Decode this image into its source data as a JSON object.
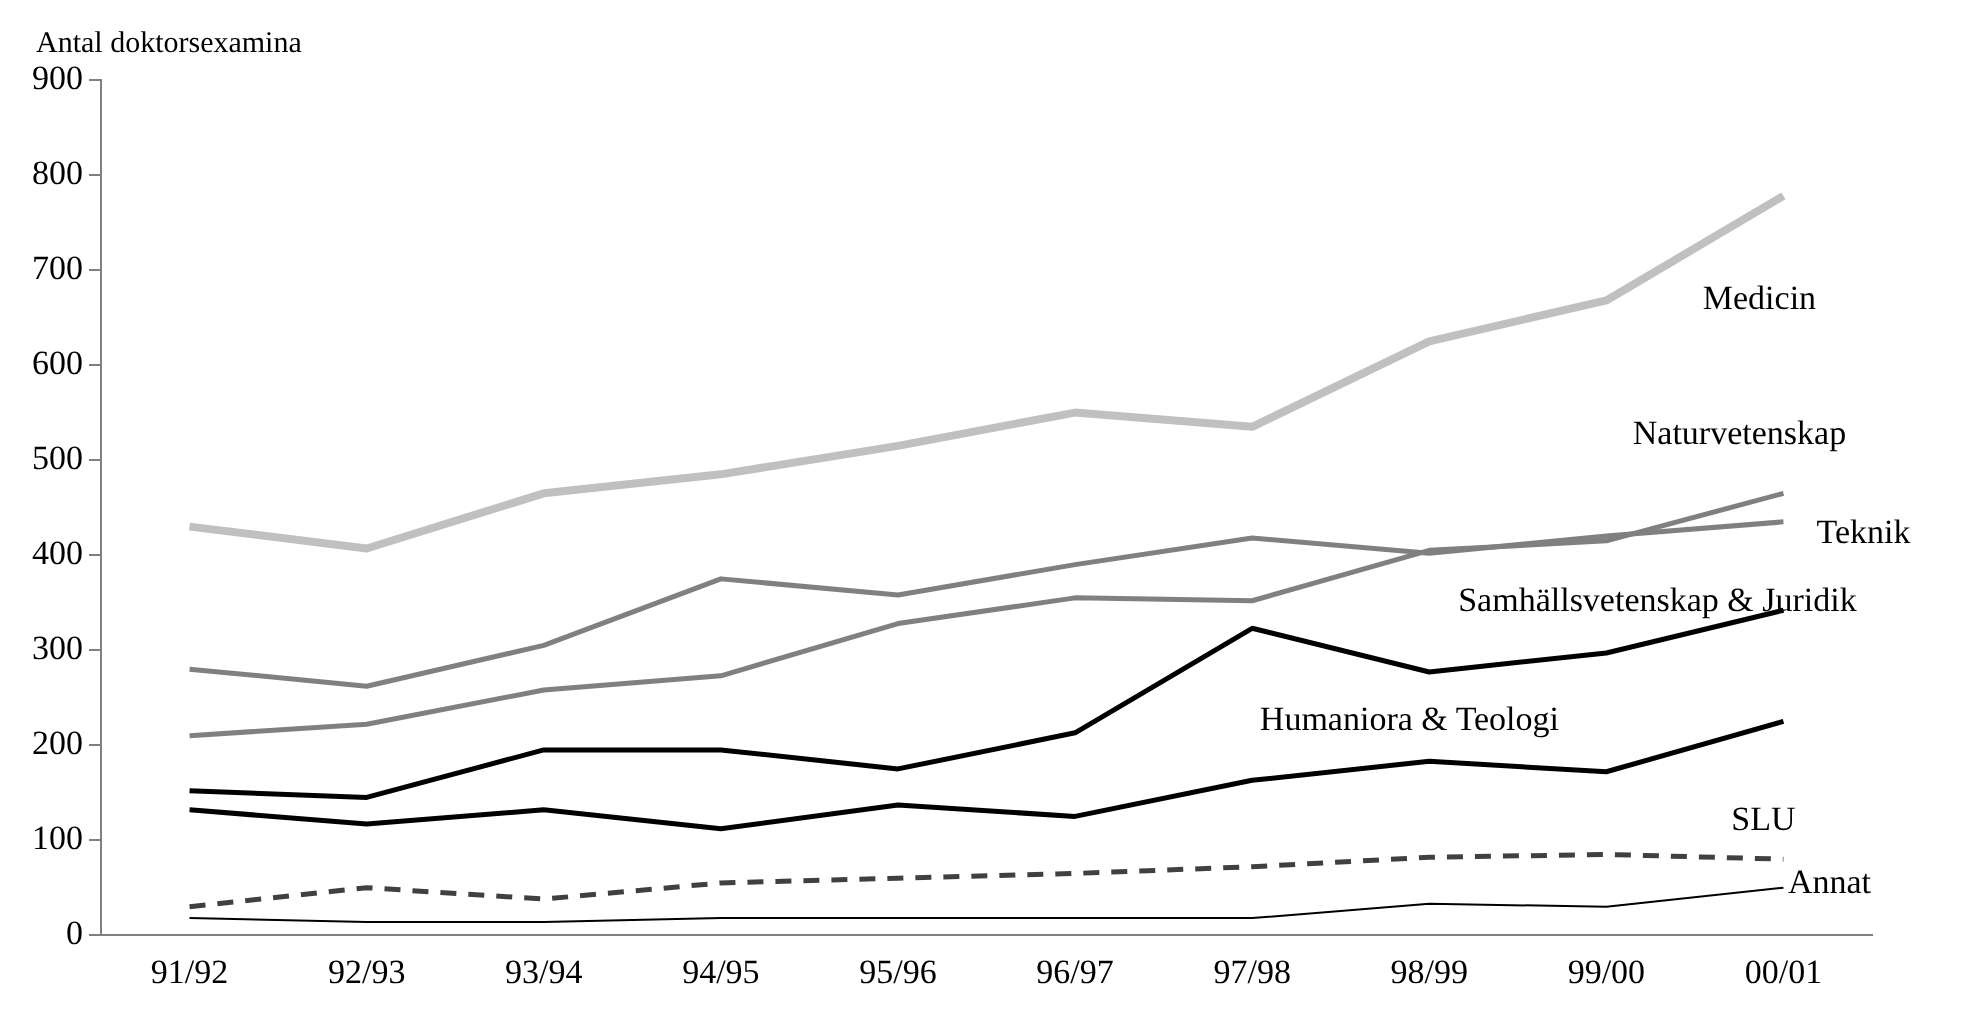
{
  "chart_data": {
    "type": "line",
    "ylabel": "Antal doktorsexamina",
    "categories": [
      "91/92",
      "92/93",
      "93/94",
      "94/95",
      "95/96",
      "96/97",
      "97/98",
      "98/99",
      "99/00",
      "00/01"
    ],
    "ylim": [
      0,
      900
    ],
    "yticks": [
      0,
      100,
      200,
      300,
      400,
      500,
      600,
      700,
      800,
      900
    ],
    "grid": false,
    "legend": false,
    "marker": "none",
    "series": [
      {
        "name": "Medicin",
        "color": "#c0c0c0",
        "values": [
          430,
          407,
          465,
          485,
          515,
          550,
          535,
          625,
          668,
          778
        ]
      },
      {
        "name": "Naturvetenskap",
        "color": "#808080",
        "values": [
          210,
          222,
          258,
          273,
          328,
          355,
          352,
          405,
          415,
          465
        ]
      },
      {
        "name": "Teknik",
        "color": "#808080",
        "values": [
          280,
          262,
          305,
          375,
          358,
          390,
          418,
          402,
          420,
          435
        ]
      },
      {
        "name": "Samhällsvetenskap & Juridik",
        "color": "#000000",
        "values": [
          152,
          145,
          195,
          195,
          175,
          213,
          323,
          277,
          297,
          342
        ]
      },
      {
        "name": "Humaniora & Teologi",
        "color": "#000000",
        "values": [
          132,
          117,
          132,
          112,
          137,
          125,
          163,
          183,
          172,
          225
        ]
      },
      {
        "name": "SLU",
        "color": "#404040",
        "line_style": "dashed",
        "values": [
          30,
          50,
          38,
          55,
          60,
          65,
          72,
          82,
          85,
          80
        ]
      },
      {
        "name": "Annat",
        "color": "#000000",
        "values": [
          18,
          14,
          14,
          18,
          18,
          18,
          18,
          33,
          30,
          50
        ]
      }
    ]
  }
}
